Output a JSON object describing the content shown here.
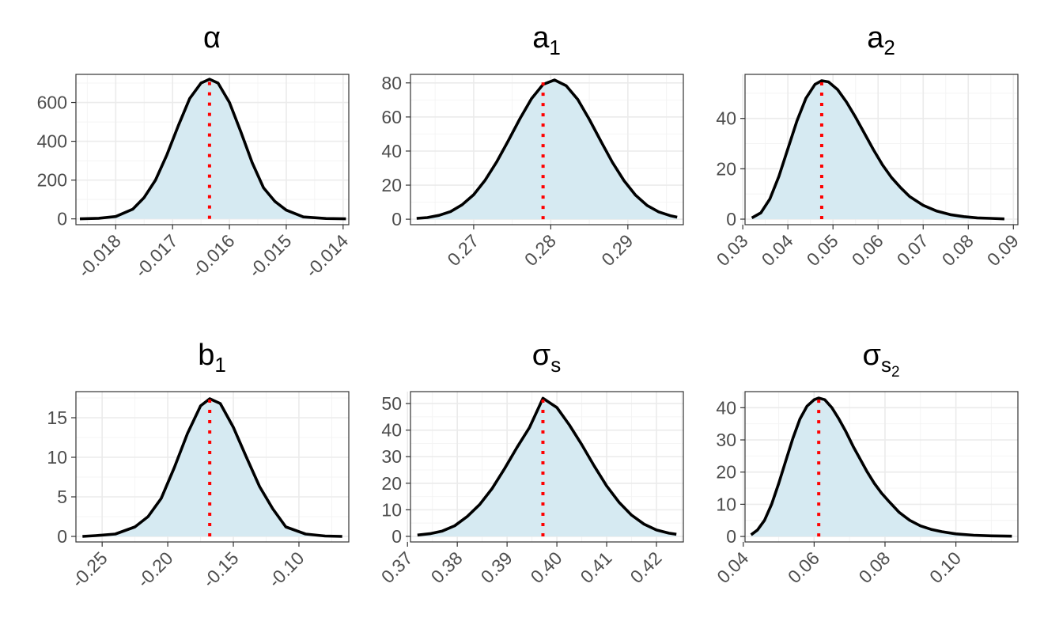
{
  "colors": {
    "fill": "#d6eaf2",
    "curve": "#000000",
    "mode": "#ff0000"
  },
  "chart_data": [
    {
      "type": "area",
      "title": {
        "base": "α",
        "sub": "",
        "subsub": ""
      },
      "x": [
        -0.01863,
        -0.0183,
        -0.018,
        -0.0177,
        -0.0175,
        -0.0173,
        -0.0171,
        -0.0169,
        -0.0167,
        -0.0165,
        -0.01635,
        -0.0162,
        -0.016,
        -0.0158,
        -0.0156,
        -0.0154,
        -0.0152,
        -0.015,
        -0.0147,
        -0.0143,
        -0.01395
      ],
      "y": [
        0,
        3,
        12,
        50,
        110,
        200,
        330,
        480,
        620,
        700,
        720,
        700,
        600,
        450,
        290,
        160,
        90,
        45,
        10,
        2,
        0
      ],
      "xlim": [
        -0.0187,
        -0.0139
      ],
      "ylim": [
        -30,
        745
      ],
      "xticks": [
        -0.018,
        -0.017,
        -0.016,
        -0.015,
        -0.014
      ],
      "xtick_labels": [
        "-0.018",
        "-0.017",
        "-0.016",
        "-0.015",
        "-0.014"
      ],
      "yticks": [
        0,
        200,
        400,
        600
      ],
      "ytick_labels": [
        "0",
        "200",
        "400",
        "600"
      ],
      "mode": -0.01635,
      "mode_y": 720
    },
    {
      "type": "area",
      "title": {
        "base": "a",
        "sub": "1",
        "subsub": ""
      },
      "x": [
        0.2626,
        0.264,
        0.2655,
        0.267,
        0.2685,
        0.27,
        0.2715,
        0.273,
        0.2745,
        0.276,
        0.2775,
        0.279,
        0.2805,
        0.282,
        0.2835,
        0.285,
        0.2865,
        0.288,
        0.2895,
        0.291,
        0.2925,
        0.294,
        0.2955,
        0.2964
      ],
      "y": [
        0.5,
        1.0,
        2.3,
        4.5,
        8.5,
        14.4,
        23.0,
        33.8,
        46.2,
        59.0,
        70.7,
        79.1,
        81.7,
        78.3,
        70.3,
        58.6,
        45.8,
        33.4,
        22.6,
        14.1,
        8.1,
        4.3,
        2.1,
        1.2
      ],
      "xlim": [
        0.2618,
        0.2972
      ],
      "ylim": [
        -3.2,
        85
      ],
      "xticks": [
        0.27,
        0.28,
        0.29
      ],
      "xtick_labels": [
        "0.27",
        "0.28",
        "0.29"
      ],
      "yticks": [
        0,
        20,
        40,
        60,
        80
      ],
      "ytick_labels": [
        "0",
        "20",
        "40",
        "60",
        "80"
      ],
      "mode": 0.279,
      "mode_y": 81.7
    },
    {
      "type": "area",
      "title": {
        "base": "a",
        "sub": "2",
        "subsub": ""
      },
      "x": [
        0.032,
        0.034,
        0.036,
        0.038,
        0.04,
        0.042,
        0.044,
        0.046,
        0.0475,
        0.049,
        0.051,
        0.053,
        0.055,
        0.057,
        0.059,
        0.061,
        0.063,
        0.065,
        0.067,
        0.07,
        0.073,
        0.076,
        0.079,
        0.082,
        0.085,
        0.088
      ],
      "y": [
        0.5,
        2.5,
        8.0,
        17.0,
        28.0,
        39.0,
        48.0,
        53.5,
        55.0,
        54.5,
        51.5,
        46.5,
        40.5,
        34.0,
        27.5,
        21.5,
        16.5,
        12.5,
        9.0,
        5.5,
        3.2,
        1.8,
        1.0,
        0.5,
        0.3,
        0.1
      ],
      "xlim": [
        0.0305,
        0.091
      ],
      "ylim": [
        -2.2,
        57.5
      ],
      "xticks": [
        0.03,
        0.04,
        0.05,
        0.06,
        0.07,
        0.08,
        0.09
      ],
      "xtick_labels": [
        "0.03",
        "0.04",
        "0.05",
        "0.06",
        "0.07",
        "0.08",
        "0.09"
      ],
      "yticks": [
        0,
        20,
        40
      ],
      "ytick_labels": [
        "0",
        "20",
        "40"
      ],
      "mode": 0.0475,
      "mode_y": 55.0
    },
    {
      "type": "area",
      "title": {
        "base": "b",
        "sub": "1",
        "subsub": ""
      },
      "x": [
        -0.265,
        -0.255,
        -0.24,
        -0.225,
        -0.215,
        -0.205,
        -0.195,
        -0.185,
        -0.175,
        -0.168,
        -0.16,
        -0.15,
        -0.14,
        -0.13,
        -0.12,
        -0.11,
        -0.095,
        -0.08,
        -0.067
      ],
      "y": [
        0.0,
        0.1,
        0.3,
        1.2,
        2.5,
        4.8,
        8.7,
        13.0,
        16.5,
        17.4,
        16.8,
        13.8,
        10.0,
        6.3,
        3.5,
        1.2,
        0.3,
        0.05,
        0.0
      ],
      "xlim": [
        -0.27,
        -0.062
      ],
      "ylim": [
        -0.7,
        18.3
      ],
      "xticks": [
        -0.25,
        -0.2,
        -0.15,
        -0.1
      ],
      "xtick_labels": [
        "-0.25",
        "-0.20",
        "-0.15",
        "-0.10"
      ],
      "yticks": [
        0,
        5,
        10,
        15
      ],
      "ytick_labels": [
        "0",
        "5",
        "10",
        "15"
      ],
      "mode": -0.168,
      "mode_y": 17.4
    },
    {
      "type": "area",
      "title": {
        "base": "σ",
        "sub": "s",
        "subsub": ""
      },
      "x": [
        0.372,
        0.3745,
        0.377,
        0.3795,
        0.382,
        0.3845,
        0.387,
        0.3895,
        0.392,
        0.3945,
        0.3972,
        0.4,
        0.4025,
        0.405,
        0.4075,
        0.41,
        0.4125,
        0.415,
        0.4175,
        0.42,
        0.4225,
        0.424
      ],
      "y": [
        0.5,
        1.0,
        2.0,
        4.0,
        7.5,
        12.0,
        18.0,
        25.5,
        33.5,
        41.0,
        52.0,
        48.5,
        42.0,
        34.5,
        26.5,
        19.0,
        12.8,
        8.0,
        4.6,
        2.4,
        1.2,
        0.8
      ],
      "xlim": [
        0.3706,
        0.4254
      ],
      "ylim": [
        -2.1,
        54.5
      ],
      "xticks": [
        0.37,
        0.38,
        0.39,
        0.4,
        0.41,
        0.42
      ],
      "xtick_labels": [
        "0.37",
        "0.38",
        "0.39",
        "0.40",
        "0.41",
        "0.42"
      ],
      "yticks": [
        0,
        10,
        20,
        30,
        40,
        50
      ],
      "ytick_labels": [
        "0",
        "10",
        "20",
        "30",
        "40",
        "50"
      ],
      "mode": 0.3972,
      "mode_y": 52.0
    },
    {
      "type": "area",
      "title": {
        "base": "σ",
        "sub": "s",
        "subsub": "2"
      },
      "x": [
        0.0422,
        0.044,
        0.046,
        0.048,
        0.05,
        0.052,
        0.054,
        0.056,
        0.058,
        0.06,
        0.0613,
        0.063,
        0.065,
        0.067,
        0.069,
        0.071,
        0.073,
        0.075,
        0.077,
        0.079,
        0.081,
        0.084,
        0.087,
        0.09,
        0.093,
        0.096,
        0.1,
        0.105,
        0.11,
        0.1158
      ],
      "y": [
        0.5,
        2.0,
        5.0,
        10.0,
        16.5,
        23.5,
        30.5,
        36.5,
        40.5,
        42.5,
        43.0,
        42.5,
        40.0,
        36.5,
        32.5,
        28.0,
        24.0,
        20.0,
        16.5,
        13.5,
        11.0,
        7.5,
        5.0,
        3.3,
        2.2,
        1.5,
        0.8,
        0.4,
        0.2,
        0.1
      ],
      "xlim": [
        0.0405,
        0.1175
      ],
      "ylim": [
        -1.7,
        45
      ],
      "xticks": [
        0.04,
        0.06,
        0.08,
        0.1
      ],
      "xtick_labels": [
        "0.04",
        "0.06",
        "0.08",
        "0.10"
      ],
      "yticks": [
        0,
        10,
        20,
        30,
        40
      ],
      "ytick_labels": [
        "0",
        "10",
        "20",
        "30",
        "40"
      ],
      "mode": 0.0613,
      "mode_y": 43.0
    }
  ]
}
